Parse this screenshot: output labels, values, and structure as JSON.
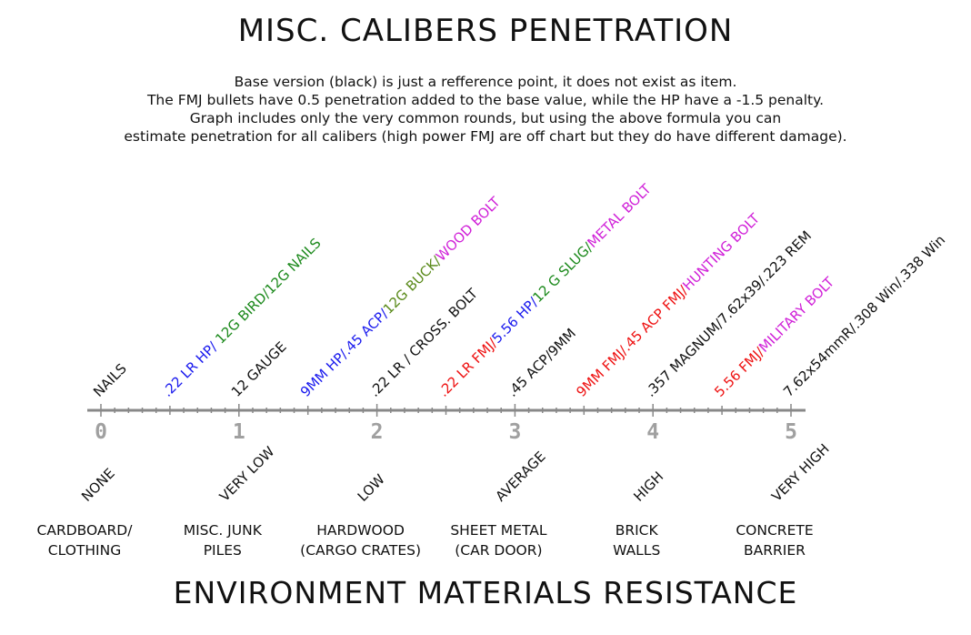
{
  "chart_data": {
    "type": "scatter",
    "title": "MISC. CALIBERS PENETRATION",
    "description": [
      "Base version (black) is just a refference point, it does not exist as item.",
      "The FMJ bullets have 0.5 penetration added to the base value, while the HP have a -1.5 penalty.",
      "Graph includes only the very common rounds, but using the above formula you can",
      "estimate penetration for all calibers (high power FMJ are off chart but they do have different damage)."
    ],
    "xlabel": "ENVIRONMENT MATERIALS RESISTANCE",
    "xlim": [
      0,
      5
    ],
    "tick_labels": [
      "0",
      "1",
      "2",
      "3",
      "4",
      "5"
    ],
    "colors": {
      "black": "#111111",
      "blue": "#1a1aee",
      "green": "#1d8a1d",
      "magenta": "#d020d8",
      "red": "#ee1111",
      "olive": "#5a8a1a",
      "axis": "#888888",
      "grey_label": "#a0a0a0"
    },
    "rounds": [
      {
        "x": 0,
        "segments": [
          {
            "text": "NAILS",
            "color": "black"
          }
        ]
      },
      {
        "x": 0.5,
        "segments": [
          {
            "text": ".22 LR HP/ ",
            "color": "blue"
          },
          {
            "text": "12G BIRD/12G NAILS",
            "color": "green"
          }
        ]
      },
      {
        "x": 1,
        "segments": [
          {
            "text": "12 GAUGE",
            "color": "black"
          }
        ]
      },
      {
        "x": 1.5,
        "segments": [
          {
            "text": "9MM HP/.45 ACP/",
            "color": "blue"
          },
          {
            "text": "12G BUCK/",
            "color": "olive"
          },
          {
            "text": "WOOD BOLT",
            "color": "magenta"
          }
        ]
      },
      {
        "x": 2,
        "segments": [
          {
            "text": ".22 LR / CROSS. BOLT",
            "color": "black"
          }
        ]
      },
      {
        "x": 2.5,
        "segments": [
          {
            "text": ".22 LR FMJ/",
            "color": "red"
          },
          {
            "text": "5.56 HP/",
            "color": "blue"
          },
          {
            "text": "12 G SLUG/",
            "color": "green"
          },
          {
            "text": "METAL BOLT",
            "color": "magenta"
          }
        ]
      },
      {
        "x": 3,
        "segments": [
          {
            "text": ".45 ACP/9MM",
            "color": "black"
          }
        ]
      },
      {
        "x": 3.5,
        "segments": [
          {
            "text": "9MM FMJ/.45 ACP FMJ/",
            "color": "red"
          },
          {
            "text": "HUNTING BOLT",
            "color": "magenta"
          }
        ]
      },
      {
        "x": 4,
        "segments": [
          {
            "text": ".357 MAGNUM/7.62x39/.223 REM",
            "color": "black"
          }
        ]
      },
      {
        "x": 4.5,
        "segments": [
          {
            "text": "5.56 FMJ/",
            "color": "red"
          },
          {
            "text": "MILITARY BOLT",
            "color": "magenta"
          }
        ]
      },
      {
        "x": 5,
        "segments": [
          {
            "text": "7.62x54mmR/.308 Win/.338 Win",
            "color": "black"
          }
        ]
      }
    ],
    "resistance_levels": [
      {
        "x": 0,
        "level": "NONE",
        "materials": [
          "CARDBOARD/",
          "CLOTHING"
        ]
      },
      {
        "x": 1,
        "level": "VERY LOW",
        "materials": [
          "MISC. JUNK",
          "PILES"
        ]
      },
      {
        "x": 2,
        "level": "LOW",
        "materials": [
          "HARDWOOD",
          "(CARGO CRATES)"
        ]
      },
      {
        "x": 3,
        "level": "AVERAGE",
        "materials": [
          "SHEET METAL",
          "(CAR DOOR)"
        ]
      },
      {
        "x": 4,
        "level": "HIGH",
        "materials": [
          "BRICK",
          "WALLS"
        ]
      },
      {
        "x": 5,
        "level": "VERY HIGH",
        "materials": [
          "CONCRETE",
          "BARRIER"
        ]
      }
    ]
  }
}
